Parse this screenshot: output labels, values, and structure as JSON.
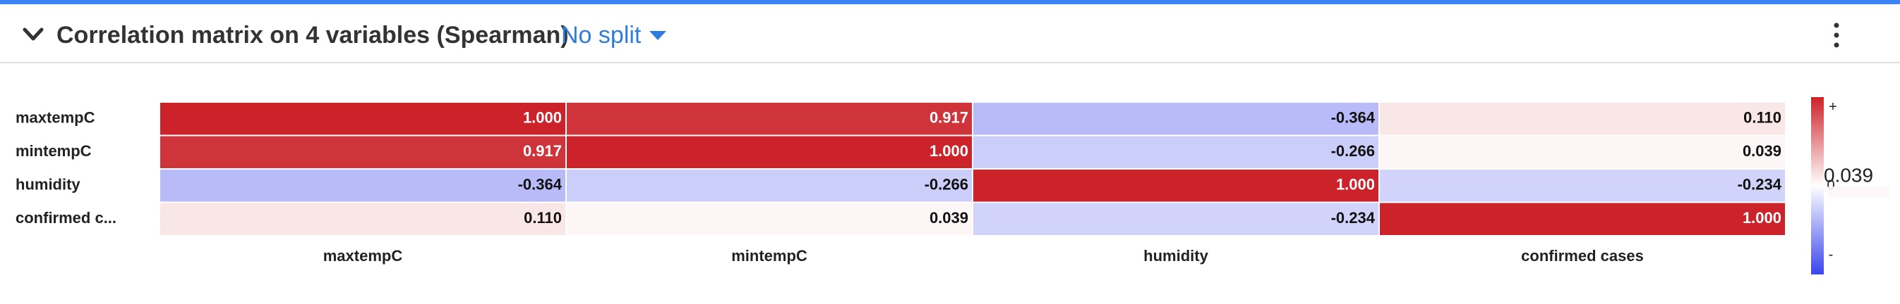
{
  "colors": {
    "accent": "#3b82f6",
    "link": "#2f7ddb",
    "positive": "#cc2229",
    "negative": "#3b45ea"
  },
  "icons": {
    "collapse": "chevron-down-icon",
    "split_caret": "caret-down-icon",
    "menu": "kebab-menu-icon"
  },
  "header": {
    "title": "Correlation matrix on 4 variables (Spearman)",
    "split_label": "No split"
  },
  "chart_data": {
    "type": "heatmap",
    "rows": [
      "maxtempC",
      "mintempC",
      "humidity",
      "confirmed c..."
    ],
    "columns": [
      "maxtempC",
      "mintempC",
      "humidity",
      "confirmed cases"
    ],
    "matrix": [
      [
        1.0,
        0.917,
        -0.364,
        0.11
      ],
      [
        0.917,
        1.0,
        -0.266,
        0.039
      ],
      [
        -0.364,
        -0.266,
        1.0,
        -0.234
      ],
      [
        0.11,
        0.039,
        -0.234,
        1.0
      ]
    ],
    "cell_labels": [
      [
        "1.000",
        "0.917",
        "-0.364",
        "0.110"
      ],
      [
        "0.917",
        "1.000",
        "-0.266",
        "0.039"
      ],
      [
        "-0.364",
        "-0.266",
        "1.000",
        "-0.234"
      ],
      [
        "0.110",
        "0.039",
        "-0.234",
        "1.000"
      ]
    ],
    "value_range": [
      -1,
      1
    ],
    "legend": {
      "position": "right",
      "top_label": "+",
      "mid_label": "0",
      "bottom_label": "-",
      "hover_value": 0.039,
      "hover_label": "0.039"
    }
  }
}
